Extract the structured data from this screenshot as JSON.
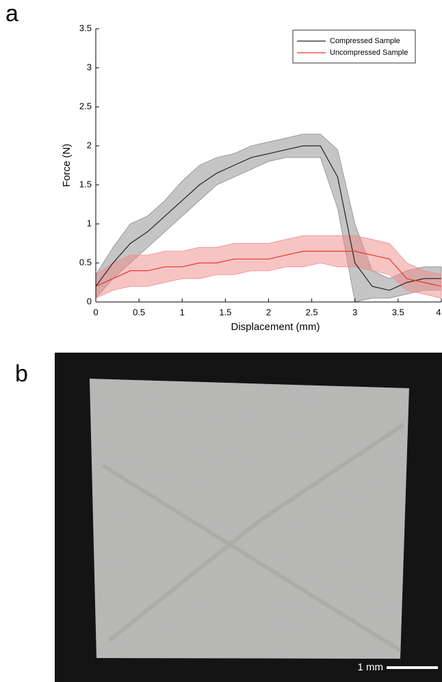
{
  "chart_data": {
    "type": "line",
    "panel_label": "a",
    "xlabel": "Displacement (mm)",
    "ylabel": "Force (N)",
    "xlim": [
      0,
      4
    ],
    "ylim": [
      0,
      3.5
    ],
    "xticks": [
      0,
      0.5,
      1,
      1.5,
      2,
      2.5,
      3,
      3.5,
      4
    ],
    "yticks": [
      0,
      0.5,
      1,
      1.5,
      2,
      2.5,
      3,
      3.5
    ],
    "legend": "upper right",
    "x": [
      0,
      0.2,
      0.4,
      0.6,
      0.8,
      1.0,
      1.2,
      1.4,
      1.6,
      1.8,
      2.0,
      2.2,
      2.4,
      2.6,
      2.8,
      3.0,
      3.2,
      3.4,
      3.6,
      3.8,
      4.0
    ],
    "series": [
      {
        "name": "Compressed Sample",
        "color": "#222222",
        "band_color": "#8c8c8c",
        "values": [
          0.2,
          0.5,
          0.75,
          0.9,
          1.1,
          1.3,
          1.5,
          1.65,
          1.75,
          1.85,
          1.9,
          1.95,
          2.0,
          2.0,
          1.6,
          0.5,
          0.2,
          0.15,
          0.25,
          0.3,
          0.3
        ],
        "lower": [
          0.05,
          0.3,
          0.5,
          0.7,
          0.9,
          1.1,
          1.3,
          1.5,
          1.6,
          1.7,
          1.8,
          1.85,
          1.85,
          1.85,
          1.2,
          0.0,
          0.05,
          0.05,
          0.1,
          0.15,
          0.15
        ],
        "upper": [
          0.35,
          0.7,
          1.0,
          1.1,
          1.3,
          1.55,
          1.75,
          1.85,
          1.9,
          2.0,
          2.05,
          2.1,
          2.15,
          2.15,
          1.95,
          1.0,
          0.4,
          0.3,
          0.4,
          0.45,
          0.45
        ]
      },
      {
        "name": "Uncompressed Sample",
        "color": "#e8352b",
        "band_color": "#f08a8a",
        "values": [
          0.2,
          0.3,
          0.4,
          0.4,
          0.45,
          0.45,
          0.5,
          0.5,
          0.55,
          0.55,
          0.55,
          0.6,
          0.65,
          0.65,
          0.65,
          0.65,
          0.6,
          0.55,
          0.3,
          0.25,
          0.2
        ],
        "lower": [
          0.05,
          0.15,
          0.2,
          0.2,
          0.25,
          0.3,
          0.3,
          0.35,
          0.35,
          0.4,
          0.4,
          0.45,
          0.45,
          0.5,
          0.45,
          0.45,
          0.4,
          0.35,
          0.15,
          0.1,
          0.05
        ],
        "upper": [
          0.35,
          0.5,
          0.6,
          0.6,
          0.65,
          0.65,
          0.7,
          0.7,
          0.75,
          0.75,
          0.75,
          0.8,
          0.85,
          0.85,
          0.85,
          0.85,
          0.8,
          0.75,
          0.5,
          0.4,
          0.35
        ]
      }
    ]
  },
  "photo": {
    "panel_label": "b",
    "scale_bar": "1 mm"
  }
}
